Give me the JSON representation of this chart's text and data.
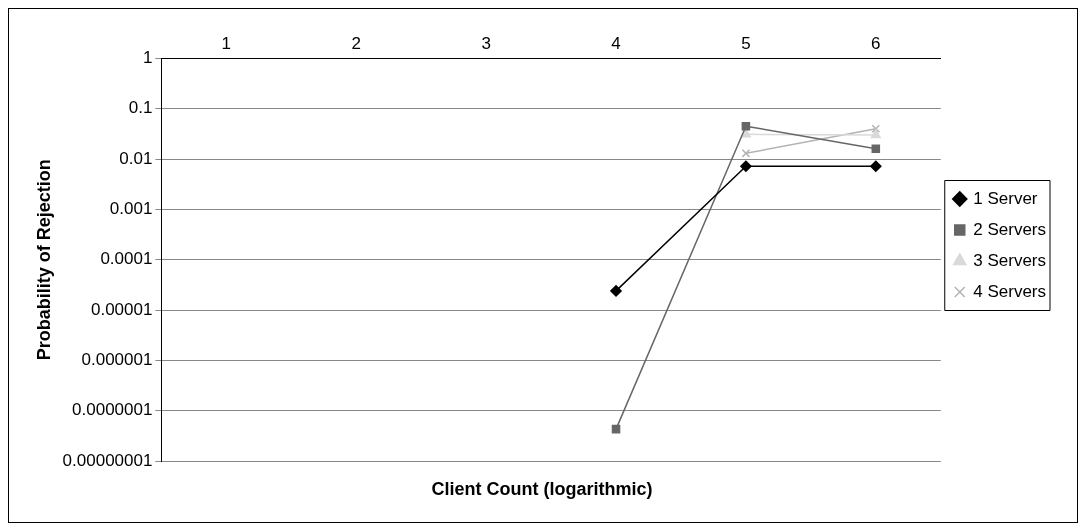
{
  "chart_data": {
    "type": "line",
    "xlabel": "Client Count (logarithmic)",
    "ylabel": "Probability of Rejection",
    "categories": [
      "1",
      "2",
      "3",
      "4",
      "5",
      "6"
    ],
    "series": [
      {
        "name": "1 Server",
        "color": "#000000",
        "marker": "diamond",
        "values": [
          null,
          null,
          null,
          2.4e-05,
          0.0072,
          0.0072
        ]
      },
      {
        "name": "2 Servers",
        "color": "#666666",
        "marker": "square",
        "values": [
          null,
          null,
          null,
          4.3e-08,
          0.045,
          0.016
        ]
      },
      {
        "name": "3 Servers",
        "color": "#d9d9d9",
        "marker": "triangle",
        "values": [
          null,
          null,
          null,
          null,
          0.031,
          0.03
        ]
      },
      {
        "name": "4 Servers",
        "color": "#b3b3b3",
        "marker": "cross",
        "values": [
          null,
          null,
          null,
          null,
          0.013,
          0.04
        ]
      }
    ],
    "log": "y",
    "ylim": [
      1e-08,
      1
    ],
    "yticks": [
      {
        "value": 1e-08,
        "label": "0.00000001"
      },
      {
        "value": 1e-07,
        "label": "0.0000001"
      },
      {
        "value": 1e-06,
        "label": "0.000001"
      },
      {
        "value": 1e-05,
        "label": "0.00001"
      },
      0.0001,
      0.001,
      0.01,
      0.1,
      1
    ],
    "grid": "y",
    "legend": "right"
  }
}
